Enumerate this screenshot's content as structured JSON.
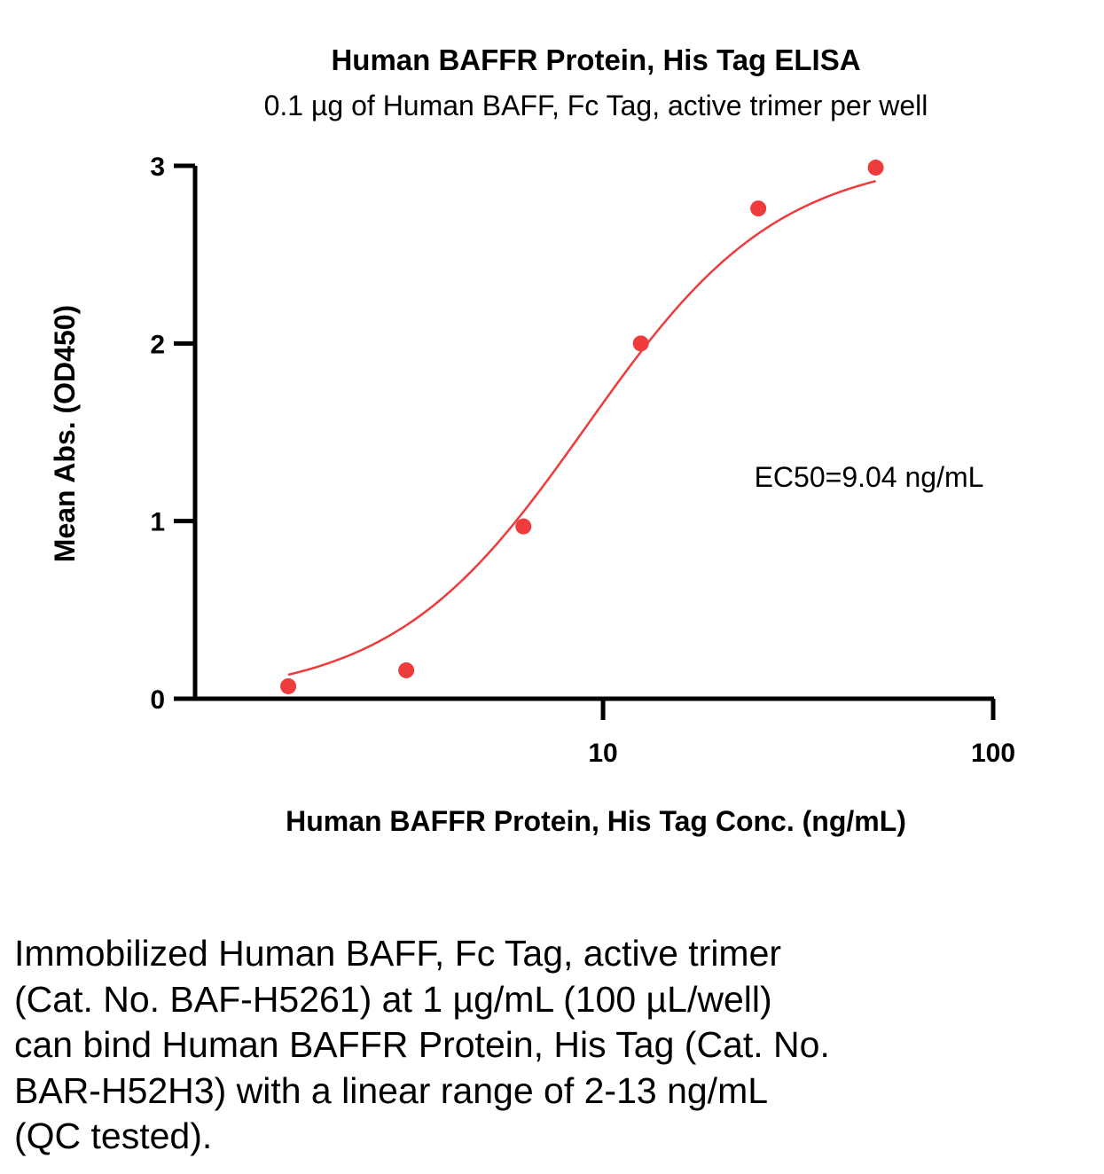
{
  "chart_data": {
    "type": "scatter",
    "title": "Human BAFFR Protein, His Tag ELISA",
    "subtitle": "0.1 µg of Human BAFF, Fc Tag, active trimer per well",
    "xlabel": "Human BAFFR Protein, His Tag Conc. (ng/mL)",
    "ylabel": "Mean Abs. (OD450)",
    "xscale": "log",
    "xlim": [
      0.9,
      100
    ],
    "ylim": [
      0,
      3
    ],
    "xticks": [
      10,
      100
    ],
    "xtick_labels": [
      "10",
      "100"
    ],
    "yticks": [
      0,
      1,
      2,
      3
    ],
    "ytick_labels": [
      "0",
      "1",
      "2",
      "3"
    ],
    "grid": false,
    "legend": "none",
    "series": [
      {
        "color": "#ee3b3b",
        "x": [
          1.56,
          3.13,
          6.25,
          12.5,
          25,
          50
        ],
        "y": [
          0.07,
          0.16,
          0.97,
          2.0,
          2.76,
          2.99
        ],
        "fit": "4PL",
        "ec50": 9.04
      }
    ],
    "annotations": [
      {
        "text": "EC50=9.04 ng/mL"
      }
    ]
  },
  "caption": {
    "lines": [
      "Immobilized Human BAFF, Fc Tag, active trimer",
      "(Cat. No. BAF-H5261) at 1 µg/mL (100 µL/well)",
      "can bind Human BAFFR Protein, His Tag (Cat. No.",
      "BAR-H52H3) with a linear range of 2-13 ng/mL",
      "(QC tested)."
    ]
  }
}
